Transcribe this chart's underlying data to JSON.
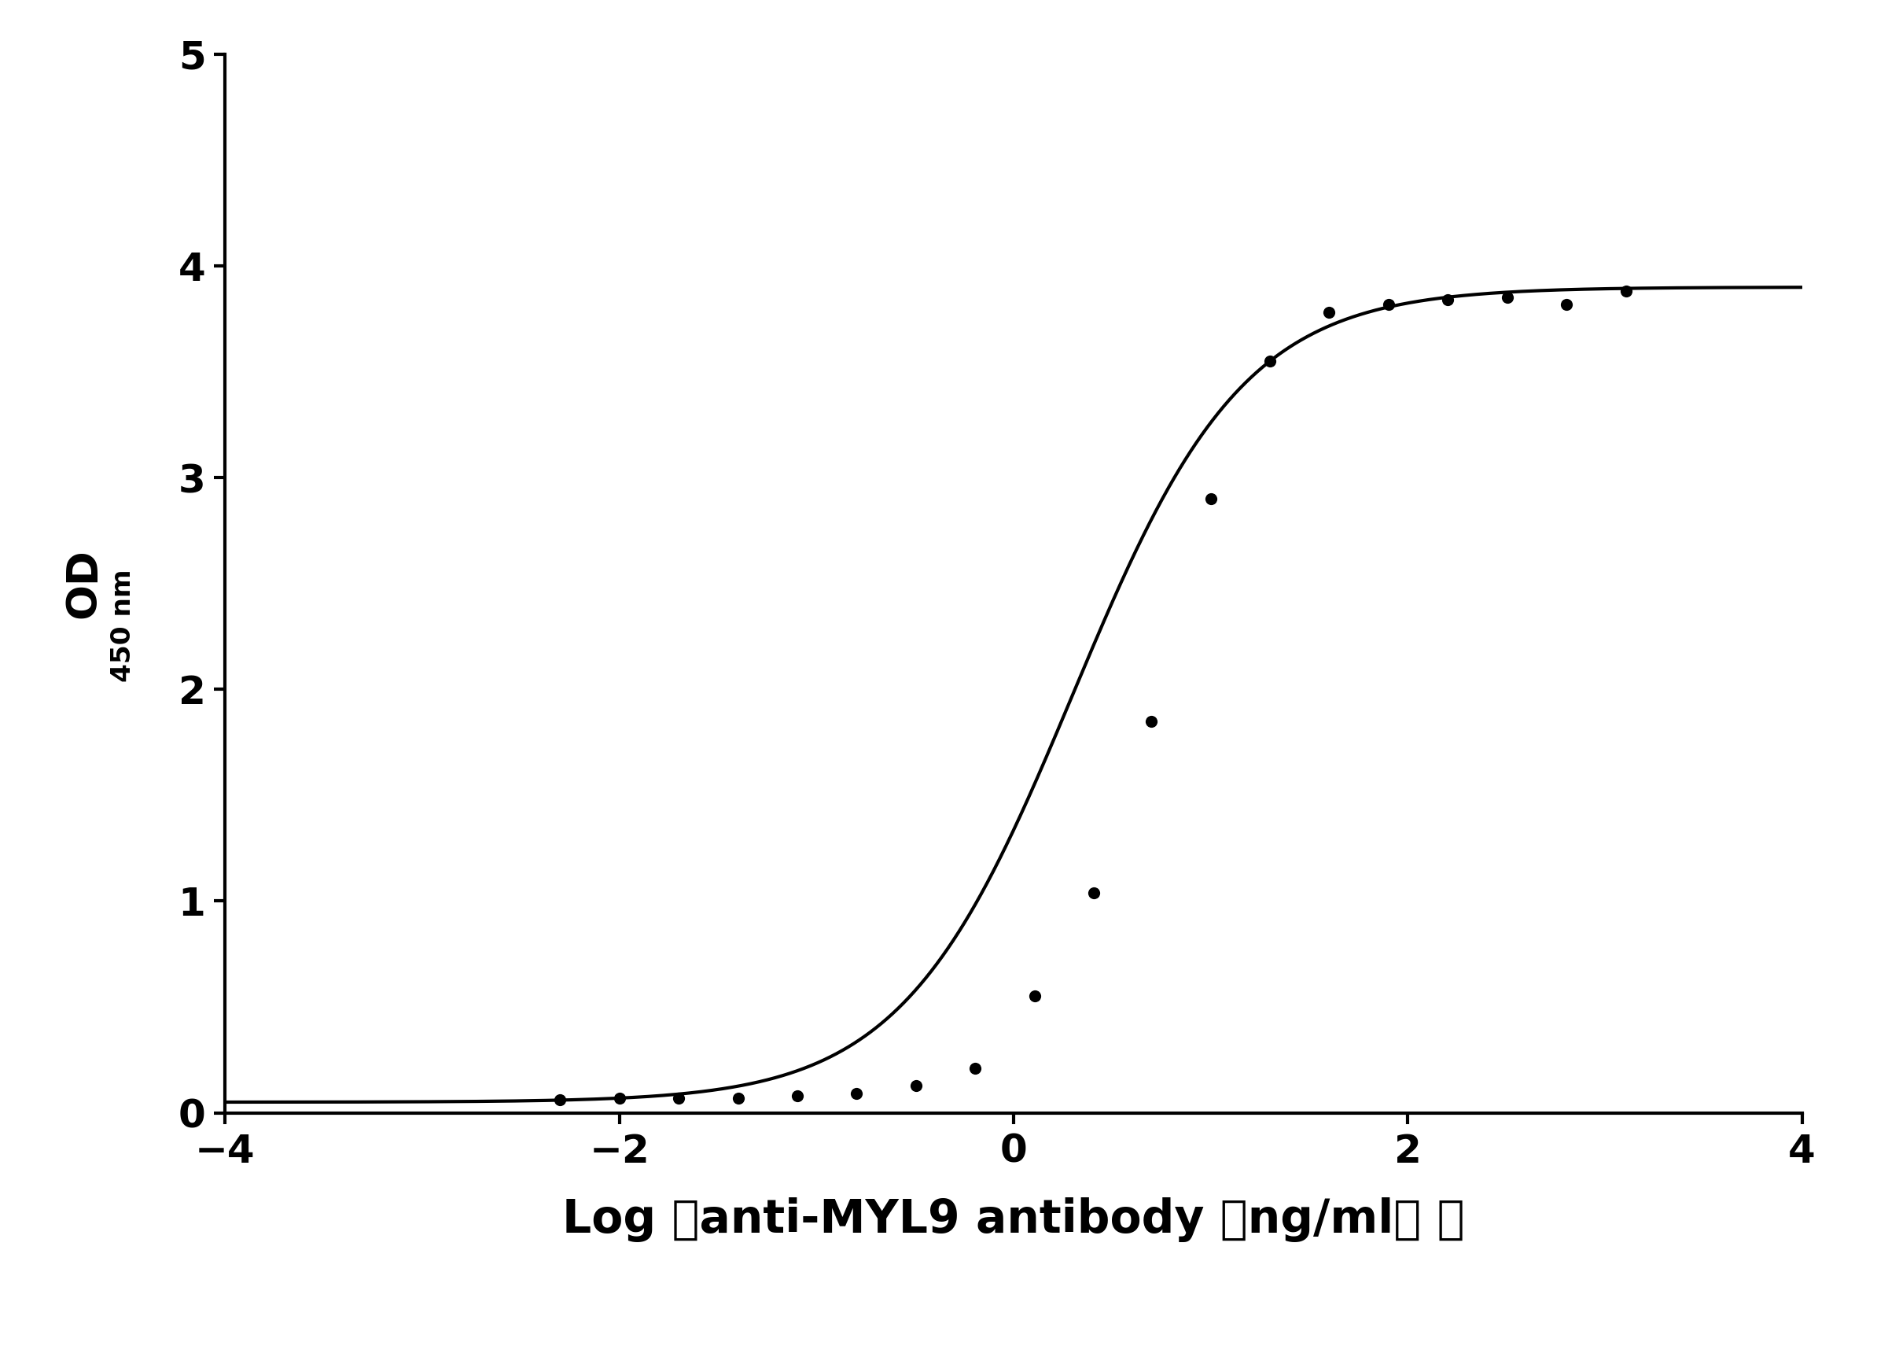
{
  "title": "",
  "xlabel": "Log （anti-MYL9 antibody （ng/ml） ）",
  "xlim": [
    -4,
    4
  ],
  "ylim": [
    0,
    5
  ],
  "xticks": [
    -4,
    -2,
    0,
    2,
    4
  ],
  "yticks": [
    0,
    1,
    2,
    3,
    4,
    5
  ],
  "data_x": [
    -2.301,
    -2.0,
    -1.699,
    -1.398,
    -1.097,
    -0.796,
    -0.495,
    -0.194,
    0.107,
    0.408,
    0.699,
    1.0,
    1.301,
    1.602,
    1.903,
    2.204,
    2.505,
    2.806,
    3.107
  ],
  "data_y": [
    0.06,
    0.07,
    0.07,
    0.07,
    0.08,
    0.09,
    0.13,
    0.21,
    0.55,
    1.04,
    1.85,
    2.9,
    3.55,
    3.78,
    3.82,
    3.84,
    3.85,
    3.82,
    3.88
  ],
  "line_color": "#000000",
  "dot_color": "#000000",
  "dot_size": 120,
  "background_color": "#ffffff",
  "xlabel_fontsize": 42,
  "ylabel_fontsize": 38,
  "tick_fontsize": 36,
  "axis_linewidth": 3.0,
  "curve_linewidth": 3.0
}
